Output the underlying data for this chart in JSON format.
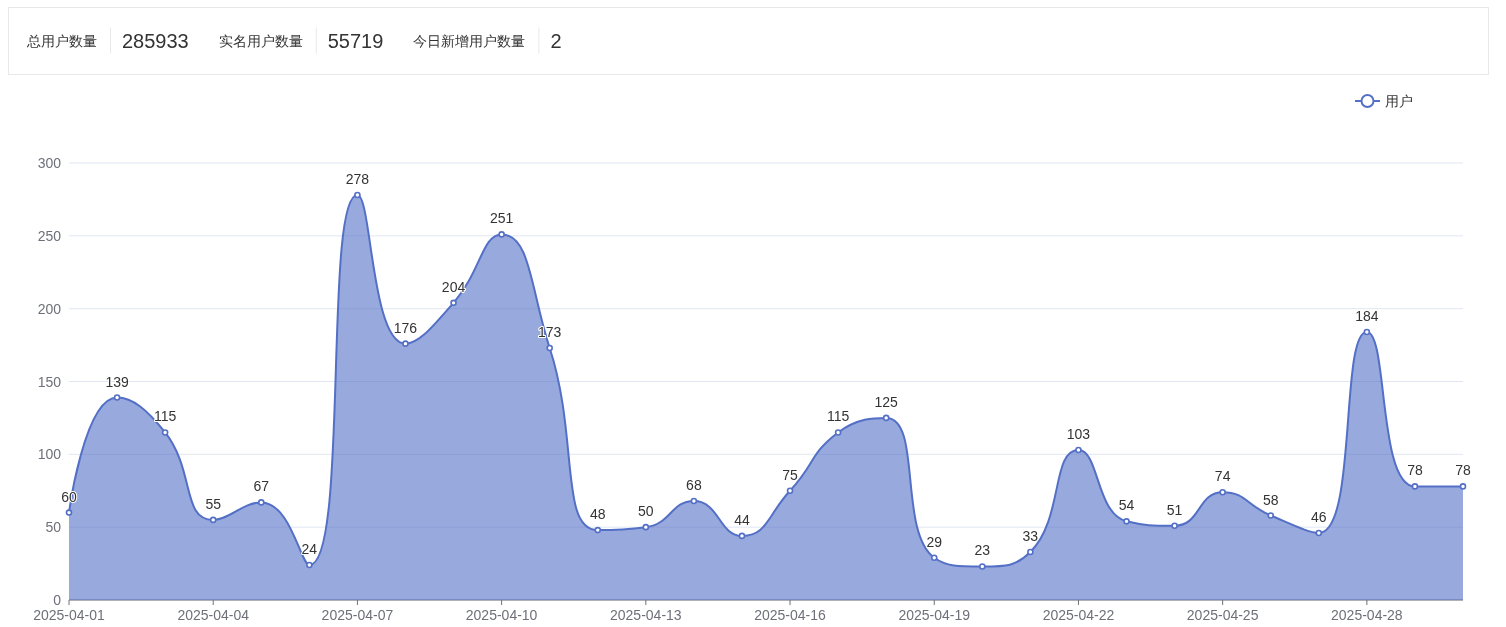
{
  "chart_data": [
    {
      "type": "other",
      "annotations": [
        "总用户数量",
        "285933",
        "实名用户数量",
        "55719",
        "今日新增用户数量",
        "2"
      ]
    },
    {
      "type": "area",
      "categories": [
        "2025-04-01",
        null,
        null,
        "2025-04-04",
        null,
        null,
        "2025-04-07",
        null,
        null,
        "2025-04-10",
        null,
        null,
        "2025-04-13",
        null,
        null,
        "2025-04-16",
        null,
        null,
        "2025-04-19",
        null,
        null,
        "2025-04-22",
        null,
        null,
        "2025-04-25",
        null,
        null,
        "2025-04-28",
        null,
        null
      ],
      "series": [
        {
          "name": "用户",
          "color": "#5470c6",
          "values": [
            60,
            139,
            115,
            55,
            67,
            24,
            278,
            176,
            204,
            251,
            173,
            48,
            50,
            68,
            44,
            75,
            115,
            125,
            29,
            23,
            33,
            103,
            54,
            51,
            74,
            58,
            46,
            184,
            78,
            78
          ]
        }
      ],
      "ylim": [
        0,
        300
      ],
      "yticks": [
        0,
        50,
        100,
        150,
        200,
        250,
        300
      ],
      "grid": "y",
      "legend": "top right",
      "marker": "circle",
      "data_labels": true
    }
  ]
}
